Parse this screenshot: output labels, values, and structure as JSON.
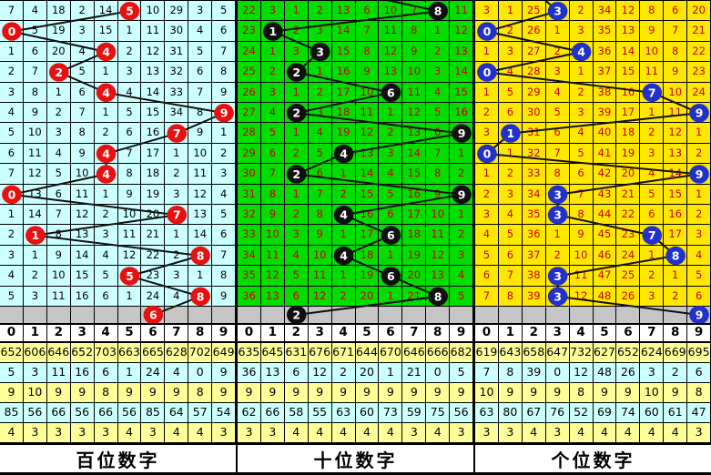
{
  "shared": {
    "line_color": "#111111",
    "gray_row_bg": "#C6C6C6",
    "header_bg": "#FFFFFF",
    "stat_row_colors": [
      "#FFFF99",
      "#CCFFFF",
      "#FFFF99",
      "#CCFFFF",
      "#FFFF99"
    ],
    "digit_columns": [
      "0",
      "1",
      "2",
      "3",
      "4",
      "5",
      "6",
      "7",
      "8",
      "9"
    ]
  },
  "chart_data": [
    {
      "type": "table",
      "title": "百位数字",
      "legend": "hundreds-digit trend panel",
      "columns": [
        "0",
        "1",
        "2",
        "3",
        "4",
        "5",
        "6",
        "7",
        "8",
        "9"
      ],
      "colors": {
        "grid_bg": "#CCFFFF",
        "text": "#000000",
        "circle": "#E81010",
        "circle_text": "#FFFFFF"
      },
      "rows": [
        [
          "7",
          "4",
          "18",
          "2",
          "14",
          "",
          "10",
          "29",
          "3",
          "5"
        ],
        [
          "",
          "5",
          "19",
          "3",
          "15",
          "1",
          "11",
          "30",
          "4",
          "6"
        ],
        [
          "1",
          "6",
          "20",
          "4",
          "",
          "2",
          "12",
          "31",
          "5",
          "7"
        ],
        [
          "2",
          "7",
          "",
          "5",
          "1",
          "3",
          "13",
          "32",
          "6",
          "8"
        ],
        [
          "3",
          "8",
          "1",
          "6",
          "",
          "4",
          "14",
          "33",
          "7",
          "9"
        ],
        [
          "4",
          "9",
          "2",
          "7",
          "1",
          "5",
          "15",
          "34",
          "8",
          ""
        ],
        [
          "5",
          "10",
          "3",
          "8",
          "2",
          "6",
          "16",
          "",
          "9",
          "1"
        ],
        [
          "6",
          "11",
          "4",
          "9",
          "",
          "7",
          "17",
          "1",
          "10",
          "2"
        ],
        [
          "7",
          "12",
          "5",
          "10",
          "",
          "8",
          "18",
          "2",
          "11",
          "3"
        ],
        [
          "",
          "13",
          "6",
          "11",
          "1",
          "9",
          "19",
          "3",
          "12",
          "4"
        ],
        [
          "1",
          "14",
          "7",
          "12",
          "2",
          "10",
          "20",
          "",
          "13",
          "5"
        ],
        [
          "2",
          "",
          "8",
          "13",
          "3",
          "11",
          "21",
          "1",
          "14",
          "6"
        ],
        [
          "3",
          "1",
          "9",
          "14",
          "4",
          "12",
          "22",
          "2",
          "",
          "7"
        ],
        [
          "4",
          "2",
          "10",
          "15",
          "5",
          "",
          "23",
          "3",
          "1",
          "8"
        ],
        [
          "5",
          "3",
          "11",
          "16",
          "6",
          "1",
          "24",
          "4",
          "",
          "9"
        ]
      ],
      "hits": [
        5,
        0,
        4,
        2,
        4,
        9,
        7,
        4,
        4,
        0,
        7,
        1,
        8,
        5,
        8
      ],
      "pending_hit": 6,
      "prev_hit": null,
      "stats": [
        [
          "652",
          "606",
          "646",
          "652",
          "703",
          "663",
          "665",
          "628",
          "702",
          "649"
        ],
        [
          "5",
          "3",
          "11",
          "16",
          "6",
          "1",
          "24",
          "4",
          "0",
          "9"
        ],
        [
          "9",
          "10",
          "9",
          "9",
          "8",
          "9",
          "9",
          "9",
          "8",
          "9"
        ],
        [
          "85",
          "56",
          "66",
          "56",
          "66",
          "56",
          "85",
          "64",
          "57",
          "54"
        ],
        [
          "4",
          "3",
          "3",
          "3",
          "3",
          "4",
          "3",
          "4",
          "4",
          "3"
        ]
      ]
    },
    {
      "type": "table",
      "title": "十位数字",
      "legend": "tens-digit trend panel",
      "columns": [
        "0",
        "1",
        "2",
        "3",
        "4",
        "5",
        "6",
        "7",
        "8",
        "9"
      ],
      "colors": {
        "grid_bg": "#00DD00",
        "text": "#CC0000",
        "circle": "#101010",
        "circle_text": "#FFFFFF"
      },
      "rows": [
        [
          "22",
          "3",
          "1",
          "2",
          "13",
          "6",
          "10",
          "7",
          "",
          "11"
        ],
        [
          "23",
          "",
          "2",
          "3",
          "14",
          "7",
          "11",
          "8",
          "1",
          "12"
        ],
        [
          "24",
          "1",
          "3",
          "",
          "15",
          "8",
          "12",
          "9",
          "2",
          "13"
        ],
        [
          "25",
          "2",
          "",
          "1",
          "16",
          "9",
          "13",
          "10",
          "3",
          "14"
        ],
        [
          "26",
          "3",
          "1",
          "2",
          "17",
          "10",
          "",
          "11",
          "4",
          "15"
        ],
        [
          "27",
          "4",
          "",
          "3",
          "18",
          "11",
          "1",
          "12",
          "5",
          "16"
        ],
        [
          "28",
          "5",
          "1",
          "4",
          "19",
          "12",
          "2",
          "13",
          "6",
          ""
        ],
        [
          "29",
          "6",
          "2",
          "5",
          "",
          "13",
          "3",
          "14",
          "7",
          "1"
        ],
        [
          "30",
          "7",
          "",
          "6",
          "1",
          "14",
          "4",
          "15",
          "8",
          "2"
        ],
        [
          "31",
          "8",
          "1",
          "7",
          "2",
          "15",
          "5",
          "16",
          "9",
          ""
        ],
        [
          "32",
          "9",
          "2",
          "8",
          "",
          "16",
          "6",
          "17",
          "10",
          "1"
        ],
        [
          "33",
          "10",
          "3",
          "9",
          "1",
          "17",
          "",
          "18",
          "11",
          "2"
        ],
        [
          "34",
          "11",
          "4",
          "10",
          "",
          "18",
          "1",
          "19",
          "12",
          "3"
        ],
        [
          "35",
          "12",
          "5",
          "11",
          "1",
          "19",
          "",
          "20",
          "13",
          "4"
        ],
        [
          "36",
          "13",
          "6",
          "12",
          "2",
          "20",
          "1",
          "21",
          "",
          "5"
        ]
      ],
      "hits": [
        8,
        1,
        3,
        2,
        6,
        2,
        9,
        4,
        2,
        9,
        4,
        6,
        4,
        6,
        8
      ],
      "pending_hit": 2,
      "prev_hit": 4,
      "stats": [
        [
          "635",
          "645",
          "631",
          "676",
          "671",
          "644",
          "670",
          "646",
          "666",
          "682"
        ],
        [
          "36",
          "13",
          "6",
          "12",
          "2",
          "20",
          "1",
          "21",
          "0",
          "5"
        ],
        [
          "9",
          "9",
          "9",
          "9",
          "9",
          "9",
          "9",
          "9",
          "9",
          "9"
        ],
        [
          "62",
          "66",
          "58",
          "55",
          "63",
          "60",
          "73",
          "59",
          "75",
          "56"
        ],
        [
          "3",
          "3",
          "4",
          "4",
          "4",
          "4",
          "4",
          "3",
          "4",
          "3"
        ]
      ]
    },
    {
      "type": "table",
      "title": "个位数字",
      "legend": "units-digit trend panel",
      "columns": [
        "0",
        "1",
        "2",
        "3",
        "4",
        "5",
        "6",
        "7",
        "8",
        "9"
      ],
      "colors": {
        "grid_bg": "#FFE800",
        "text": "#CC0000",
        "circle": "#2230CC",
        "circle_text": "#FFFFFF"
      },
      "rows": [
        [
          "3",
          "1",
          "25",
          "",
          "2",
          "34",
          "12",
          "8",
          "6",
          "20"
        ],
        [
          "",
          "2",
          "26",
          "1",
          "3",
          "35",
          "13",
          "9",
          "7",
          "21"
        ],
        [
          "1",
          "3",
          "27",
          "2",
          "",
          "36",
          "14",
          "10",
          "8",
          "22"
        ],
        [
          "",
          "4",
          "28",
          "3",
          "1",
          "37",
          "15",
          "11",
          "9",
          "23"
        ],
        [
          "1",
          "5",
          "29",
          "4",
          "2",
          "38",
          "16",
          "",
          "10",
          "24"
        ],
        [
          "2",
          "6",
          "30",
          "5",
          "3",
          "39",
          "17",
          "1",
          "11",
          ""
        ],
        [
          "3",
          "",
          "31",
          "6",
          "4",
          "40",
          "18",
          "2",
          "12",
          "1"
        ],
        [
          "",
          "1",
          "32",
          "7",
          "5",
          "41",
          "19",
          "3",
          "13",
          "2"
        ],
        [
          "1",
          "2",
          "33",
          "8",
          "6",
          "42",
          "20",
          "4",
          "14",
          ""
        ],
        [
          "2",
          "3",
          "34",
          "",
          "7",
          "43",
          "21",
          "5",
          "15",
          "1"
        ],
        [
          "3",
          "4",
          "35",
          "",
          "8",
          "44",
          "22",
          "6",
          "16",
          "2"
        ],
        [
          "4",
          "5",
          "36",
          "1",
          "9",
          "45",
          "23",
          "",
          "17",
          "3"
        ],
        [
          "5",
          "6",
          "37",
          "2",
          "10",
          "46",
          "24",
          "1",
          "",
          "4"
        ],
        [
          "6",
          "7",
          "38",
          "",
          "11",
          "47",
          "25",
          "2",
          "1",
          "5"
        ],
        [
          "7",
          "8",
          "39",
          "",
          "12",
          "48",
          "26",
          "3",
          "2",
          "6"
        ]
      ],
      "hits": [
        3,
        0,
        4,
        0,
        7,
        9,
        1,
        0,
        9,
        3,
        3,
        7,
        8,
        3,
        3
      ],
      "pending_hit": 9,
      "prev_hit": 2,
      "stats": [
        [
          "619",
          "643",
          "658",
          "647",
          "732",
          "627",
          "652",
          "624",
          "669",
          "695"
        ],
        [
          "7",
          "8",
          "39",
          "0",
          "12",
          "48",
          "26",
          "3",
          "2",
          "6"
        ],
        [
          "10",
          "9",
          "9",
          "9",
          "8",
          "9",
          "9",
          "10",
          "9",
          "8"
        ],
        [
          "63",
          "80",
          "67",
          "76",
          "52",
          "69",
          "74",
          "60",
          "61",
          "47"
        ],
        [
          "3",
          "3",
          "4",
          "3",
          "4",
          "4",
          "4",
          "4",
          "4",
          "3"
        ]
      ]
    }
  ]
}
